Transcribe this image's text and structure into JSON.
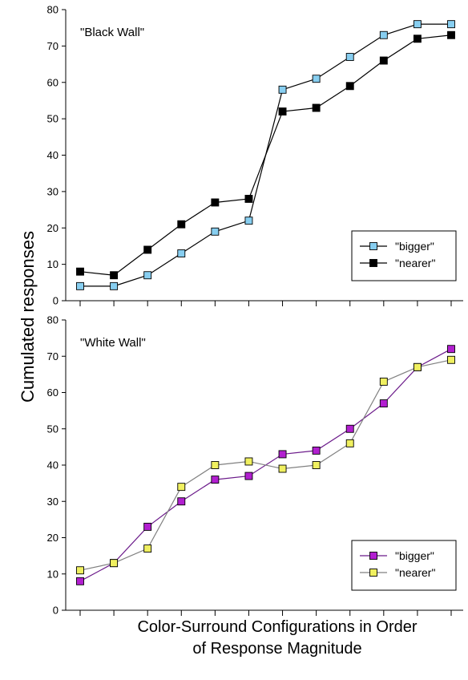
{
  "figure": {
    "ylabel": "Cumulated responses",
    "xlabel_lines": [
      "Color-Surround Configurations in Order",
      "of Response Magnitude"
    ]
  },
  "chart_data": [
    {
      "type": "line",
      "title": "\"Black Wall\"",
      "x": [
        1,
        2,
        3,
        4,
        5,
        6,
        7,
        8,
        9,
        10,
        11,
        12
      ],
      "ylim": [
        0,
        80
      ],
      "yticks": [
        0,
        10,
        20,
        30,
        40,
        50,
        60,
        70,
        80
      ],
      "grid": false,
      "legend": "bottom-right",
      "series": [
        {
          "name": "\"bigger\"",
          "color": "#000000",
          "marker_fill": "#87cef0",
          "values": [
            4,
            4,
            7,
            13,
            19,
            22,
            58,
            61,
            67,
            73,
            76,
            76
          ]
        },
        {
          "name": "\"nearer\"",
          "color": "#000000",
          "marker_fill": "#000000",
          "values": [
            8,
            7,
            14,
            21,
            27,
            28,
            52,
            53,
            59,
            66,
            72,
            73
          ]
        }
      ]
    },
    {
      "type": "line",
      "title": "\"White Wall\"",
      "x": [
        1,
        2,
        3,
        4,
        5,
        6,
        7,
        8,
        9,
        10,
        11,
        12
      ],
      "ylim": [
        0,
        80
      ],
      "yticks": [
        0,
        10,
        20,
        30,
        40,
        50,
        60,
        70,
        80
      ],
      "grid": false,
      "legend": "bottom-right",
      "series": [
        {
          "name": "\"bigger\"",
          "color": "#6b1a8a",
          "marker_fill": "#b21fd0",
          "values": [
            8,
            13,
            23,
            30,
            36,
            37,
            43,
            44,
            50,
            57,
            67,
            72
          ]
        },
        {
          "name": "\"nearer\"",
          "color": "#808080",
          "marker_fill": "#f0f060",
          "values": [
            11,
            13,
            17,
            34,
            40,
            41,
            39,
            40,
            46,
            63,
            67,
            69
          ]
        }
      ]
    }
  ]
}
